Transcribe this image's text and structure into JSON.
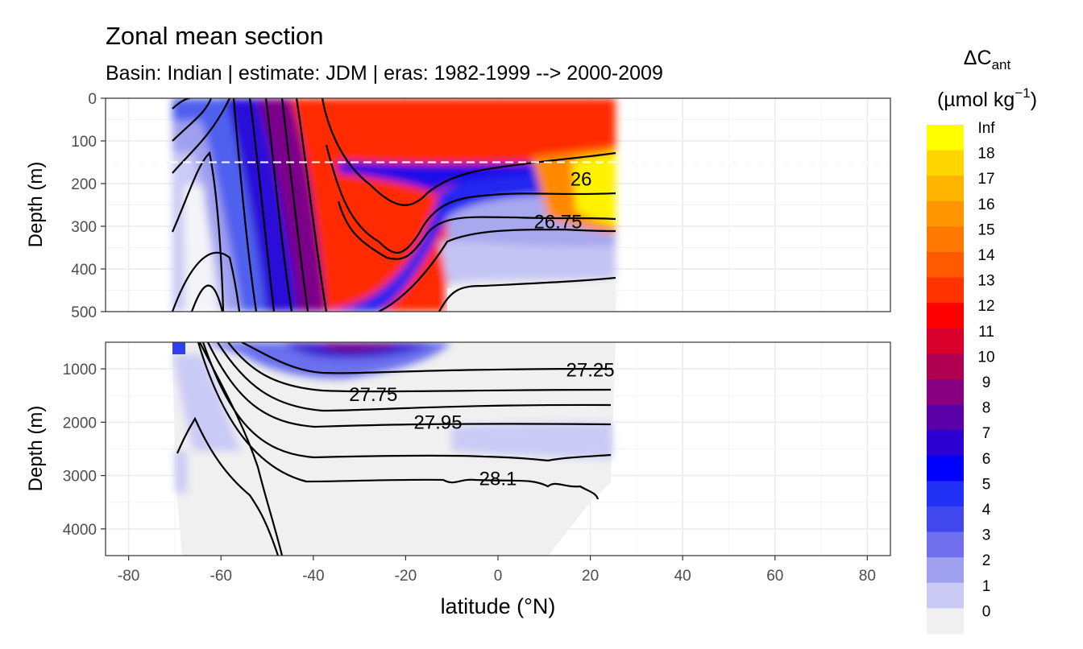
{
  "chart_data": {
    "type": "heatmap",
    "title": "Zonal mean section",
    "subtitle": "Basin: Indian | estimate: JDM  | eras: 1982-1999 --> 2000-2009",
    "xlabel": "latitude (°N)",
    "ylabel": "Depth (m)",
    "x_ticks": [
      "-80",
      "-60",
      "-40",
      "-20",
      "0",
      "20",
      "40",
      "60",
      "80"
    ],
    "x_tick_values": [
      -80,
      -60,
      -40,
      -20,
      0,
      20,
      40,
      60,
      80
    ],
    "xlim": [
      -85,
      85
    ],
    "data_lat_range": [
      -70,
      25
    ],
    "panels": [
      {
        "name": "upper",
        "ylim": [
          0,
          500
        ],
        "y_reversed": true,
        "y_ticks": [
          "0",
          "100",
          "200",
          "300",
          "400",
          "500"
        ],
        "y_tick_values": [
          0,
          100,
          200,
          300,
          400,
          500
        ]
      },
      {
        "name": "lower",
        "ylim": [
          500,
          4500
        ],
        "y_reversed": true,
        "y_ticks": [
          "1000",
          "2000",
          "3000",
          "4000"
        ],
        "y_tick_values": [
          1000,
          2000,
          3000,
          4000
        ]
      }
    ],
    "reference_line_depth": 150,
    "contour_labels": [
      {
        "text": "26",
        "lat": 18,
        "depth": 190
      },
      {
        "text": "26.75",
        "lat": 13,
        "depth": 290
      },
      {
        "text": "27.25",
        "lat": 20,
        "depth": 1020
      },
      {
        "text": "27.75",
        "lat": -27,
        "depth": 1480
      },
      {
        "text": "27.95",
        "lat": -13,
        "depth": 2000
      },
      {
        "text": "28.1",
        "lat": 0,
        "depth": 3060
      }
    ],
    "legend": {
      "title": "ΔC",
      "title_subscript": "ant",
      "unit": "(µmol kg",
      "unit_superscript": "−1",
      "unit_close": ")",
      "position": "right",
      "labels": [
        "Inf",
        "18",
        "17",
        "16",
        "15",
        "14",
        "13",
        "12",
        "11",
        "10",
        "9",
        "8",
        "7",
        "6",
        "5",
        "4",
        "3",
        "2",
        "1",
        "0"
      ],
      "colors": [
        "#ffff00",
        "#ffd700",
        "#ffb400",
        "#ff9600",
        "#ff7800",
        "#ff5a00",
        "#ff3200",
        "#ff0000",
        "#d8002a",
        "#b00050",
        "#880080",
        "#5a00a8",
        "#2c00d2",
        "#0000ff",
        "#2030f5",
        "#4048ee",
        "#7070ee",
        "#a0a0f0",
        "#cacaf6",
        "#f0f0f0"
      ]
    }
  }
}
